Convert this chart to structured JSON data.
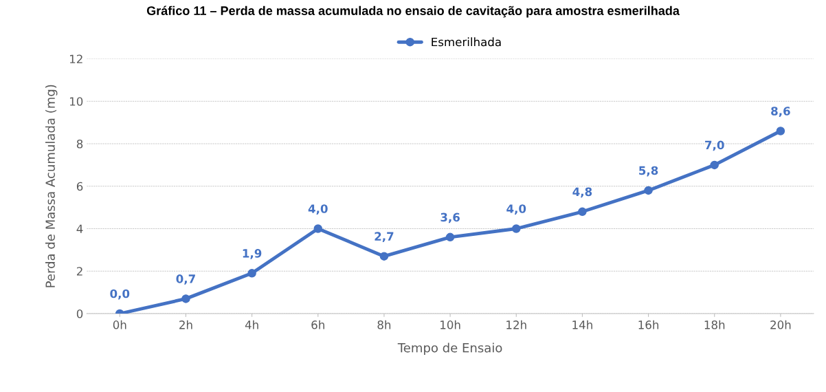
{
  "chart_data": {
    "type": "line",
    "title": "Gráfico 11 – Perda de massa acumulada no ensaio de cavitação para amostra esmerilhada",
    "xlabel": "Tempo de Ensaio",
    "ylabel": "Perda de Massa Acumulada (mg)",
    "categories": [
      "0h",
      "2h",
      "4h",
      "6h",
      "8h",
      "10h",
      "12h",
      "14h",
      "16h",
      "18h",
      "20h"
    ],
    "series": [
      {
        "name": "Esmerilhada",
        "color": "#4472c4",
        "values": [
          0,
          0.7,
          1.9,
          4.0,
          2.7,
          3.6,
          4.0,
          4.8,
          5.8,
          7.0,
          8.6
        ],
        "value_labels": [
          "0,0",
          "0,7",
          "1,9",
          "4,0",
          "2,7",
          "3,6",
          "4,0",
          "4,8",
          "5,8",
          "7,0",
          "8,6"
        ]
      }
    ],
    "ylim": [
      0,
      12
    ],
    "yticks": [
      0,
      2,
      4,
      6,
      8,
      10,
      12
    ],
    "grid": "y",
    "legend": "top",
    "marker": "circle",
    "line_style": "solid"
  }
}
